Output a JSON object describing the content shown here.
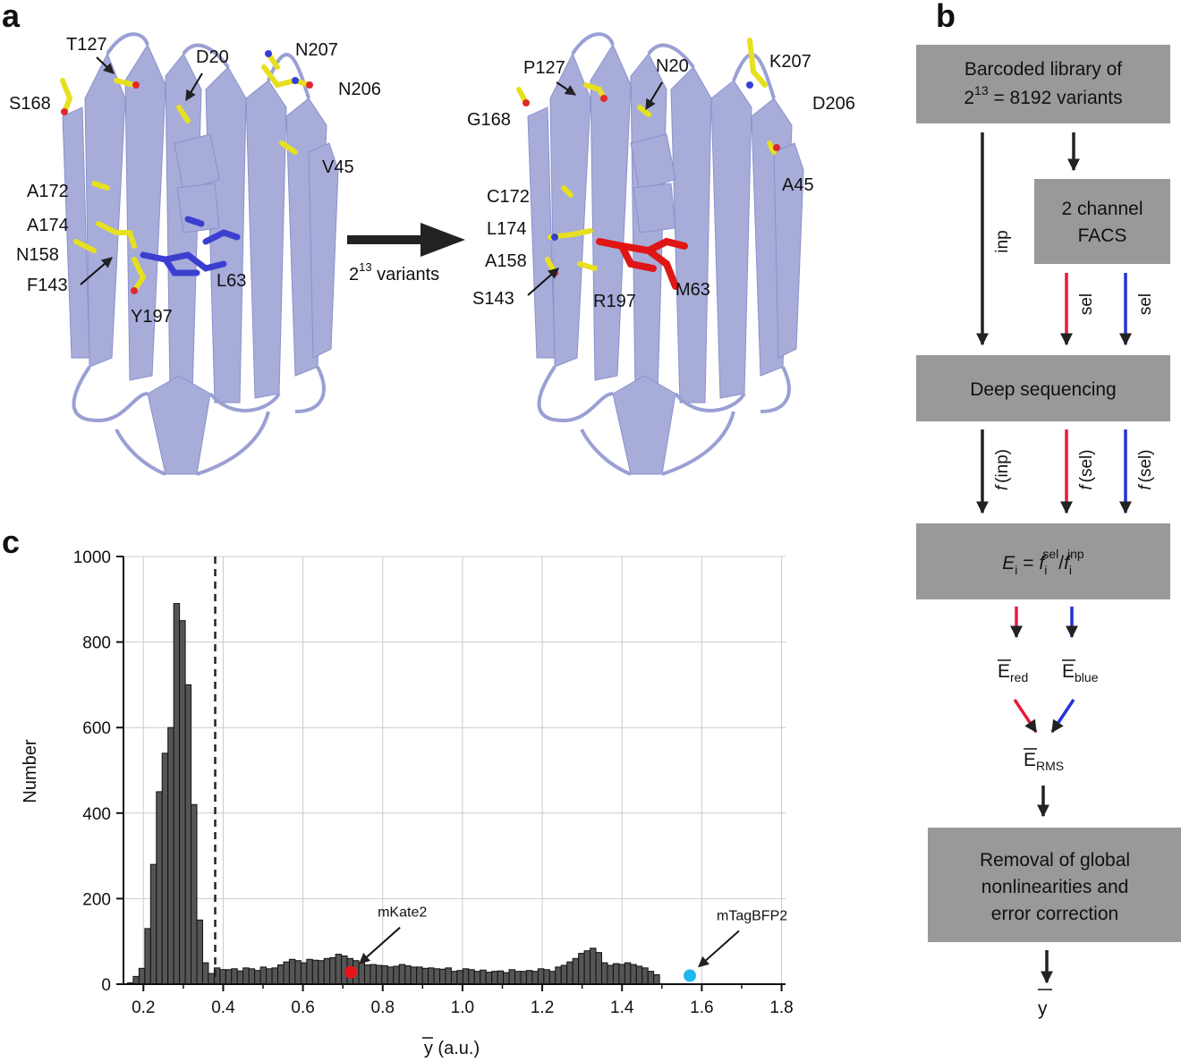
{
  "panels": {
    "a": "a",
    "b": "b",
    "c": "c"
  },
  "structure": {
    "arrow_label_base": "2",
    "arrow_label_exp": "13",
    "arrow_label_rest": " variants",
    "left_residues": [
      "T127",
      "D20",
      "N207",
      "N206",
      "S168",
      "V45",
      "A172",
      "A174",
      "N158",
      "F143",
      "Y197",
      "L63"
    ],
    "right_residues": [
      "P127",
      "N20",
      "K207",
      "D206",
      "G168",
      "A45",
      "C172",
      "L174",
      "A158",
      "S143",
      "R197",
      "M63"
    ],
    "colors": {
      "protein": "#a7acd9",
      "protein_dark": "#7f86c4",
      "side_chain": "#e6e020",
      "chromophore_left": "#3b3fcf",
      "chromophore_right": "#e01616",
      "oxygen": "#e02a2a",
      "nitrogen": "#3340d6"
    }
  },
  "flow": {
    "box_library_line1": "Barcoded library of",
    "box_library_line2_base": "2",
    "box_library_line2_exp": "13",
    "box_library_line2_rest": " = 8192 variants",
    "box_facs_line1": "2 channel",
    "box_facs_line2": "FACS",
    "inp_label": "inp",
    "sel_label_red": "sel",
    "sel_label_blue": "sel",
    "box_seq": "Deep sequencing",
    "f_inp": "(inp)",
    "f_sel_red": "(sel)",
    "f_sel_blue": "(sel)",
    "f_symbol": "f",
    "box_eq_E": "E",
    "box_eq_i": "i",
    "box_eq_f": "f",
    "box_eq_sel": "sel",
    "box_eq_inp": "inp",
    "e_red_base": "E",
    "e_red_sub": "red",
    "e_blue_base": "E",
    "e_blue_sub": "blue",
    "e_rms_base": "E",
    "e_rms_sub": "RMS",
    "box_removal_line1": "Removal of global",
    "box_removal_line2": "nonlinearities and",
    "box_removal_line3": "error correction",
    "y_final": "y",
    "colors": {
      "box": "#999999",
      "black": "#222222",
      "red": "#e8193a",
      "blue": "#2233d6"
    }
  },
  "chart_data": {
    "type": "bar",
    "title": "",
    "xlabel": "y (a.u.)",
    "ylabel": "Number",
    "xlim": [
      0.15,
      1.81
    ],
    "ylim": [
      0,
      1000
    ],
    "xticks": [
      "0.2",
      "0.4",
      "0.6",
      "0.8",
      "1.0",
      "1.2",
      "1.4",
      "1.6",
      "1.8"
    ],
    "yticks": [
      "0",
      "200",
      "400",
      "600",
      "800",
      "1000"
    ],
    "grid": true,
    "bin_start": 0.16,
    "bin_width": 0.0145,
    "values": [
      3,
      18,
      37,
      130,
      280,
      450,
      540,
      600,
      890,
      850,
      700,
      420,
      150,
      50,
      25,
      38,
      34,
      34,
      36,
      31,
      38,
      36,
      32,
      40,
      36,
      38,
      45,
      52,
      58,
      55,
      50,
      58,
      56,
      55,
      60,
      62,
      70,
      66,
      60,
      55,
      50,
      45,
      46,
      44,
      43,
      40,
      42,
      46,
      43,
      40,
      40,
      37,
      38,
      36,
      35,
      38,
      30,
      32,
      36,
      34,
      30,
      33,
      28,
      30,
      31,
      27,
      34,
      30,
      30,
      32,
      30,
      36,
      34,
      30,
      40,
      44,
      52,
      60,
      72,
      78,
      84,
      74,
      50,
      44,
      48,
      46,
      50,
      46,
      42,
      38,
      30,
      22
    ],
    "threshold_x": 0.38,
    "markers": [
      {
        "name": "mKate2",
        "x": 0.72,
        "y": 28,
        "color": "#e8141c"
      },
      {
        "name": "mTagBFP2",
        "x": 1.57,
        "y": 20,
        "color": "#1fb7ef"
      }
    ]
  }
}
